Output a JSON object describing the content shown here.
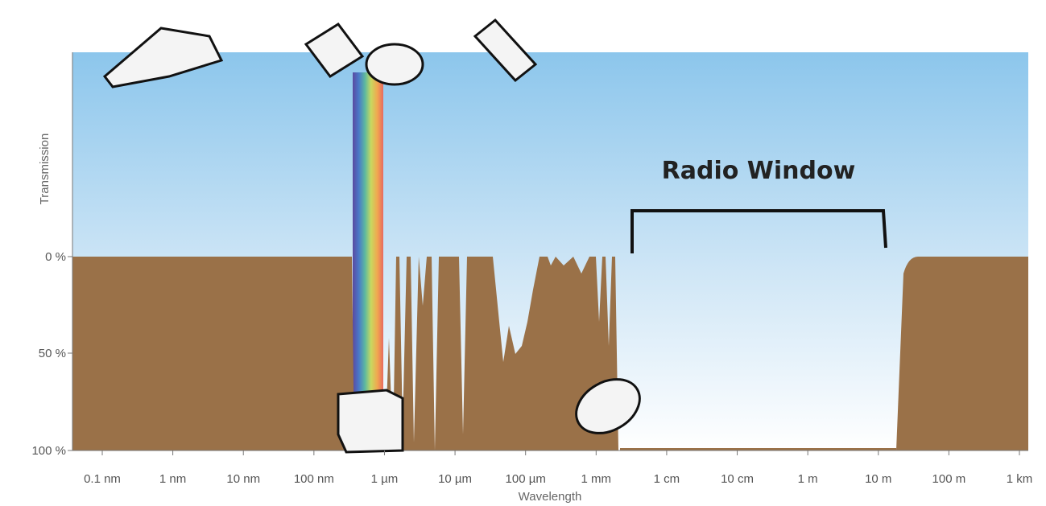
{
  "y_axis": {
    "title": "Transmission",
    "ticks": [
      "0 %",
      "50 %",
      "100 %"
    ]
  },
  "x_axis": {
    "title": "Wavelength",
    "ticks": [
      "0.1 nm",
      "1 nm",
      "10 nm",
      "100 nm",
      "1 µm",
      "10 µm",
      "100 µm",
      "1 mm",
      "1 cm",
      "10 cm",
      "1 m",
      "10 m",
      "100 m",
      "1 km"
    ]
  },
  "annotation": "Radio Window"
}
